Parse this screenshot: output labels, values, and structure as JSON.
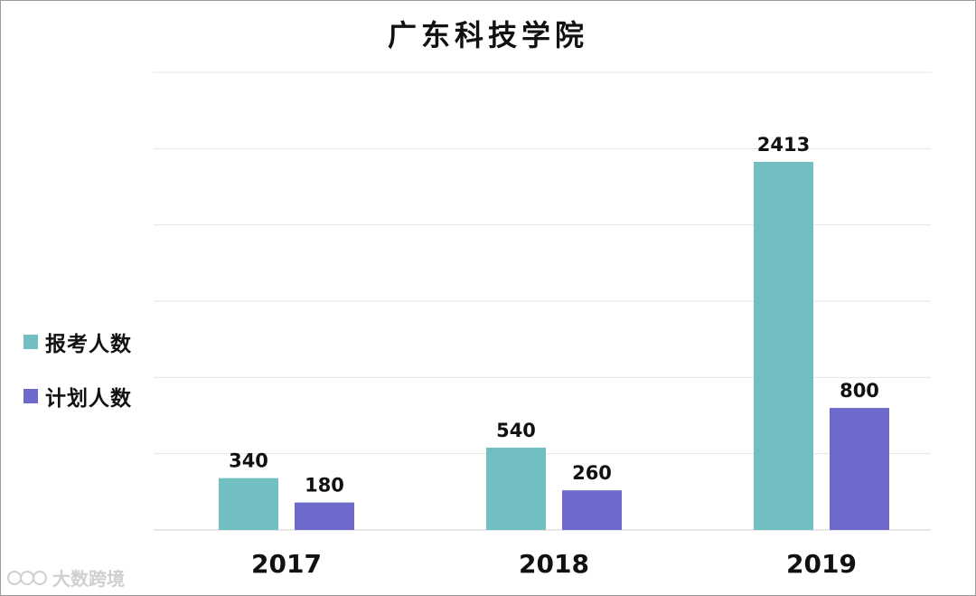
{
  "chart_data": {
    "type": "bar",
    "title": "广东科技学院",
    "categories": [
      "2017",
      "2018",
      "2019"
    ],
    "series": [
      {
        "name": "报考人数",
        "values": [
          340,
          540,
          2413
        ],
        "color": "#72bfc2"
      },
      {
        "name": "计划人数",
        "values": [
          180,
          260,
          800
        ],
        "color": "#6e6acc"
      }
    ],
    "ylim": [
      0,
      3000
    ],
    "grid": true,
    "legend_position": "left"
  },
  "watermark": {
    "text": "大数跨境",
    "icon": "brand-logo-icon"
  }
}
